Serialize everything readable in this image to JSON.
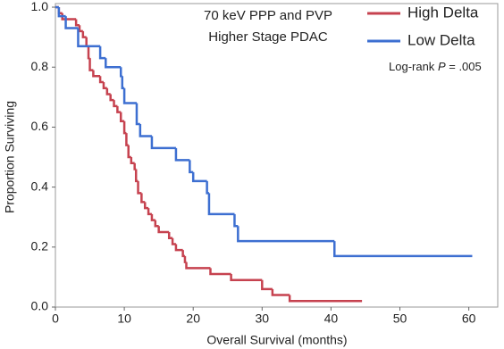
{
  "chart_data": {
    "type": "step",
    "annotations": [
      "70 keV PPP and PVP",
      "Higher Stage PDAC"
    ],
    "log_rank": [
      "Log-rank",
      "P",
      "= .005"
    ],
    "x_label": "Overall Survival (months)",
    "y_label": "Proportion Surviving",
    "xlim": [
      0,
      64.2
    ],
    "ylim": [
      0,
      1.012
    ],
    "xticks": [
      0,
      10,
      20,
      30,
      40,
      50,
      60
    ],
    "yticks": [
      {
        "value": 0,
        "label": "0.0"
      },
      0.2,
      0.4,
      0.6,
      0.8,
      {
        "value": 1,
        "label": "1.0"
      }
    ],
    "legend": "top-right",
    "series": [
      {
        "name": "High Delta",
        "color": "#c6424f",
        "x": [
          0,
          0.5,
          1,
          3,
          3.5,
          4,
          4.5,
          4.8,
          5,
          5.5,
          6.5,
          7,
          7.5,
          8,
          8.5,
          9,
          9.5,
          10,
          10.3,
          10.6,
          11,
          11.5,
          11.7,
          12,
          12.5,
          13,
          13.5,
          14,
          14.5,
          15,
          16.5,
          17,
          17.5,
          18.5,
          18.8,
          19,
          22.5,
          25.5,
          30,
          31.5,
          34,
          44.5
        ],
        "values": [
          1,
          0.98,
          0.96,
          0.94,
          0.92,
          0.9,
          0.87,
          0.83,
          0.79,
          0.77,
          0.75,
          0.73,
          0.71,
          0.69,
          0.67,
          0.65,
          0.62,
          0.58,
          0.54,
          0.5,
          0.48,
          0.46,
          0.42,
          0.38,
          0.35,
          0.33,
          0.31,
          0.29,
          0.27,
          0.25,
          0.23,
          0.21,
          0.19,
          0.17,
          0.15,
          0.13,
          0.11,
          0.09,
          0.06,
          0.04,
          0.02,
          0.02
        ]
      },
      {
        "name": "Low Delta",
        "color": "#3d6fd1",
        "x": [
          0,
          0.5,
          1.5,
          3.3,
          6.5,
          7.3,
          9.5,
          9.7,
          10,
          11.8,
          12.3,
          14,
          17.5,
          19.5,
          20,
          22,
          22.3,
          26,
          26.5,
          40.5,
          60.5
        ],
        "values": [
          1,
          0.97,
          0.93,
          0.87,
          0.83,
          0.8,
          0.77,
          0.73,
          0.68,
          0.61,
          0.57,
          0.53,
          0.49,
          0.45,
          0.42,
          0.38,
          0.31,
          0.27,
          0.22,
          0.17,
          0.17
        ]
      }
    ]
  }
}
